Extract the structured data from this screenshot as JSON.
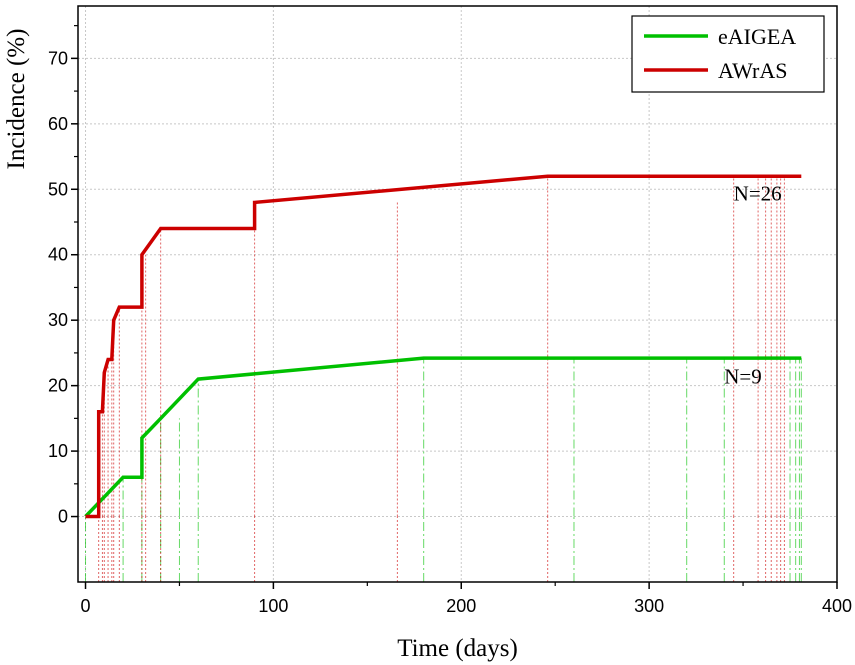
{
  "chart_data": {
    "type": "line",
    "xlabel": "Time (days)",
    "ylabel": "Incidence (%)",
    "xlim": [
      -4,
      400
    ],
    "ylim": [
      -10,
      78
    ],
    "xticks": [
      0,
      100,
      200,
      300,
      400
    ],
    "yticks": [
      0,
      10,
      20,
      30,
      40,
      50,
      60,
      70
    ],
    "grid": true,
    "legend_position": "top-right",
    "series": [
      {
        "name": "eAIGEA",
        "color": "#00c000",
        "step": false,
        "points": [
          [
            0,
            0
          ],
          [
            20,
            6
          ],
          [
            30,
            6
          ],
          [
            30,
            12
          ],
          [
            40,
            15
          ],
          [
            60,
            21
          ],
          [
            180,
            24.2
          ],
          [
            381,
            24.2
          ]
        ],
        "event_times": [
          0,
          20,
          30,
          40,
          50,
          60,
          180,
          260,
          320,
          340,
          375,
          378,
          380,
          381
        ],
        "annotation": "N=9",
        "annotation_at": [
          340,
          20
        ]
      },
      {
        "name": "AWrAS",
        "color": "#cc0000",
        "step": false,
        "points": [
          [
            0,
            0
          ],
          [
            7,
            0
          ],
          [
            7,
            16
          ],
          [
            9,
            16
          ],
          [
            10,
            22
          ],
          [
            12,
            24
          ],
          [
            14,
            24
          ],
          [
            15,
            30
          ],
          [
            18,
            32
          ],
          [
            30,
            32
          ],
          [
            30,
            40
          ],
          [
            40,
            44
          ],
          [
            90,
            44
          ],
          [
            90,
            48
          ],
          [
            246,
            52
          ],
          [
            381,
            52
          ]
        ],
        "event_times": [
          7,
          9,
          10,
          12,
          14,
          15,
          18,
          30,
          32,
          40,
          90,
          166,
          246,
          345,
          358,
          362,
          365,
          368,
          370,
          372
        ],
        "annotation": "N=26",
        "annotation_at": [
          345,
          48
        ]
      }
    ]
  }
}
